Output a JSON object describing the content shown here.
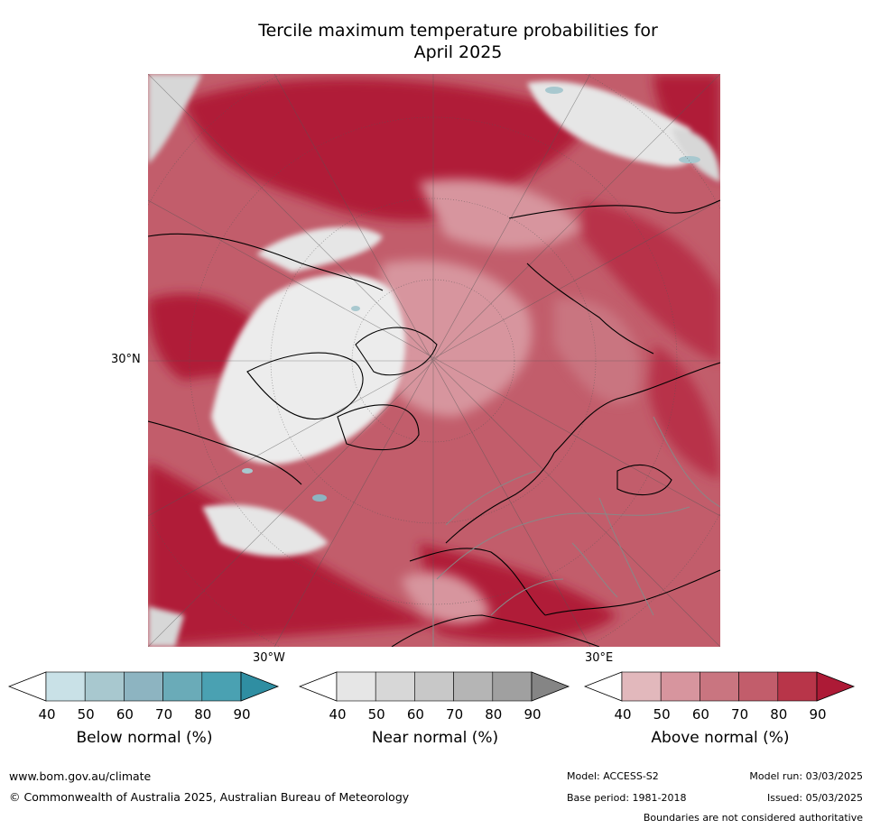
{
  "title_line1": "Tercile maximum temperature probabilities for",
  "title_line2": "April 2025",
  "map": {
    "lat_label": "30°N",
    "lon_label_west": "30°W",
    "lon_label_east": "30°E"
  },
  "colorbars": [
    {
      "label": "Below normal (%)",
      "ticks": [
        "40",
        "50",
        "60",
        "70",
        "80",
        "90"
      ],
      "colors": [
        "#ffffff",
        "#c9e1e7",
        "#a8c8cf",
        "#8db4c1",
        "#6aabb8",
        "#4aa1b2",
        "#2f8ea2"
      ]
    },
    {
      "label": "Near normal (%)",
      "ticks": [
        "40",
        "50",
        "60",
        "70",
        "80",
        "90"
      ],
      "colors": [
        "#ffffff",
        "#e6e6e6",
        "#d7d7d7",
        "#c8c8c8",
        "#b5b5b5",
        "#a0a0a0",
        "#858585"
      ]
    },
    {
      "label": "Above normal (%)",
      "ticks": [
        "40",
        "50",
        "60",
        "70",
        "80",
        "90"
      ],
      "colors": [
        "#ffffff",
        "#e2b8bc",
        "#d7959e",
        "#c97580",
        "#c25d6b",
        "#b83549",
        "#ad1a36"
      ]
    }
  ],
  "footer": {
    "url": "www.bom.gov.au/climate",
    "copyright": "© Commonwealth of Australia 2025, Australian Bureau of Meteorology",
    "model": "Model: ACCESS-S2",
    "base_period": "Base period: 1981-2018",
    "model_run": "Model run: 03/03/2025",
    "issued": "Issued: 05/03/2025",
    "disclaimer": "Boundaries are not considered authoritative"
  }
}
